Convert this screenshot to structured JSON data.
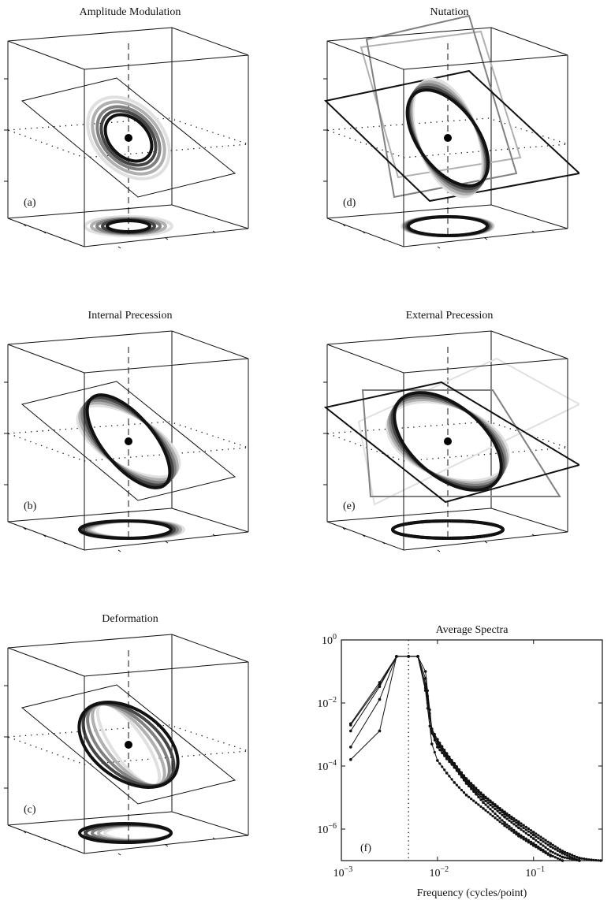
{
  "panels": [
    {
      "id": "a",
      "title": "Amplitude Modulation",
      "label": "(a)"
    },
    {
      "id": "b",
      "title": "Internal Precession",
      "label": "(b)"
    },
    {
      "id": "c",
      "title": "Deformation",
      "label": "(c)"
    },
    {
      "id": "d",
      "title": "Nutation",
      "label": "(d)"
    },
    {
      "id": "e",
      "title": "External Precession",
      "label": "(e)"
    }
  ],
  "colors": {
    "trace_shades": [
      "#e0e0e0",
      "#b0b0b0",
      "#808080",
      "#454545",
      "#111111"
    ]
  },
  "chart_data": {
    "type": "line",
    "title": "Average Spectra",
    "panel_label": "(f)",
    "xlabel": "Frequency (cycles/point)",
    "ylabel": "",
    "xscale": "log",
    "yscale": "log",
    "xlim": [
      0.001,
      0.52
    ],
    "ylim": [
      1e-07,
      1
    ],
    "xticks": [
      {
        "value": 0.001,
        "label": "10",
        "exp": "−3"
      },
      {
        "value": 0.01,
        "label": "10",
        "exp": "−2"
      },
      {
        "value": 0.1,
        "label": "10",
        "exp": "−1"
      }
    ],
    "yticks": [
      {
        "value": 1,
        "label": "10",
        "exp": "0"
      },
      {
        "value": 0.01,
        "label": "10",
        "exp": "−2"
      },
      {
        "value": 0.0001,
        "label": "10",
        "exp": "−4"
      },
      {
        "value": 1e-06,
        "label": "10",
        "exp": "−6"
      }
    ],
    "vline": {
      "x": 0.005,
      "style": "dotted"
    },
    "grid": false,
    "markers": "dots",
    "x": [
      0.00125,
      0.0025,
      0.00375,
      0.005,
      0.00625,
      0.0075,
      0.00875,
      0.01,
      0.0125,
      0.015,
      0.02,
      0.03,
      0.05,
      0.07,
      0.1,
      0.15,
      0.2,
      0.3,
      0.4,
      0.5
    ],
    "series": [
      {
        "values": [
          0.0022,
          0.045,
          0.3,
          0.3,
          0.3,
          0.1,
          0.0015,
          0.0007,
          0.00025,
          0.00012,
          4e-05,
          1.2e-05,
          3.5e-06,
          1.7e-06,
          8e-07,
          3.5e-07,
          2e-07,
          1.2e-07,
          1.05e-07,
          1e-07
        ]
      },
      {
        "values": [
          0.002,
          0.038,
          0.3,
          0.3,
          0.3,
          0.06,
          0.0013,
          0.0006,
          0.00022,
          0.00011,
          3.5e-05,
          1.1e-05,
          3e-06,
          1.4e-06,
          6.5e-07,
          2.8e-07,
          1.7e-07,
          1e-07,
          null,
          null
        ]
      },
      {
        "values": [
          0.0013,
          0.033,
          0.3,
          0.3,
          0.3,
          0.04,
          0.0012,
          0.0005,
          0.0002,
          0.0001,
          3e-05,
          9e-06,
          2.4e-06,
          1.1e-06,
          5e-07,
          2e-07,
          1.3e-07,
          1e-07,
          null,
          null
        ]
      },
      {
        "values": [
          0.0004,
          0.013,
          0.3,
          0.3,
          0.3,
          0.03,
          0.0011,
          0.0004,
          0.00017,
          9e-05,
          2.8e-05,
          7e-06,
          1.6e-06,
          7e-07,
          3.5e-07,
          1.5e-07,
          1e-07,
          null,
          null,
          null
        ]
      },
      {
        "values": [
          0.00016,
          0.0013,
          0.3,
          0.3,
          0.3,
          0.025,
          0.0005,
          0.00015,
          6e-05,
          3e-05,
          1.2e-05,
          4.5e-06,
          1.3e-06,
          6e-07,
          3e-07,
          1.4e-07,
          null,
          null,
          null,
          null
        ]
      }
    ]
  }
}
